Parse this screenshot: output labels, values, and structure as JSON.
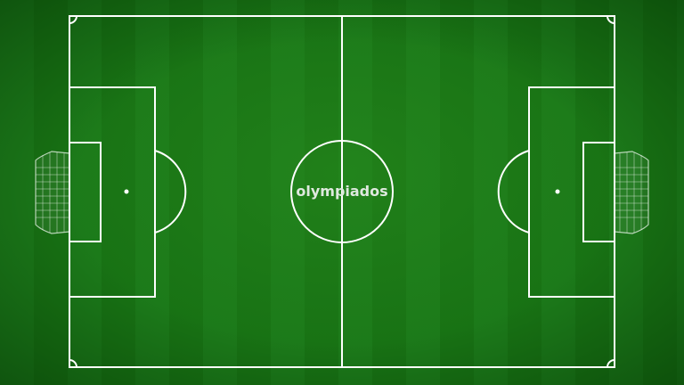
{
  "pitch": {
    "center_label": "olympiados",
    "colors": {
      "grass_light": "#1c7a1a",
      "grass_dark": "#187214",
      "lines": "#ffffff",
      "label": "#dfe9df"
    }
  }
}
